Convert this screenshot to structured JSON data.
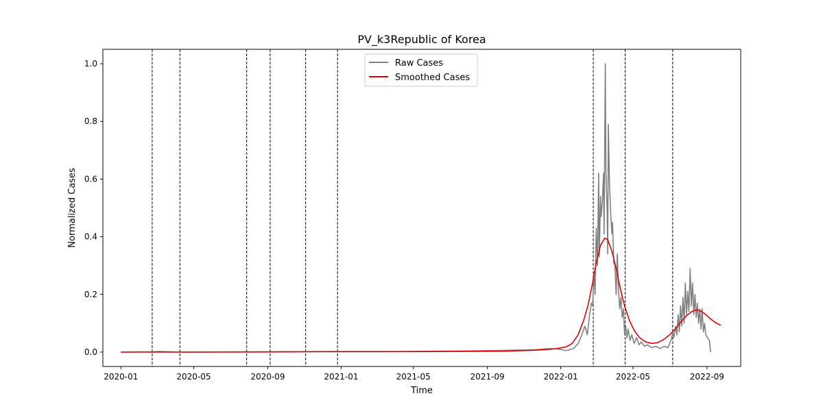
{
  "chart_data": {
    "type": "line",
    "title": "PV_k3Republic of Korea",
    "xlabel": "Time",
    "ylabel": "Normalized Cases",
    "x_range": [
      "2019-12-02",
      "2022-10-27"
    ],
    "ylim": [
      -0.05,
      1.05
    ],
    "grid": false,
    "legend_position": "top-center",
    "x_ticks": [
      "2020-01-01",
      "2020-05-01",
      "2020-09-01",
      "2021-01-01",
      "2021-05-01",
      "2021-09-01",
      "2022-01-01",
      "2022-05-01",
      "2022-09-01"
    ],
    "x_tick_labels": [
      "2020-01",
      "2020-05",
      "2020-09",
      "2021-01",
      "2021-05",
      "2021-09",
      "2022-01",
      "2022-05",
      "2022-09"
    ],
    "y_ticks": [
      0.0,
      0.2,
      0.4,
      0.6,
      0.8,
      1.0
    ],
    "y_tick_labels": [
      "0.0",
      "0.2",
      "0.4",
      "0.6",
      "0.8",
      "1.0"
    ],
    "vertical_markers": [
      "2020-02-22",
      "2020-04-08",
      "2020-07-28",
      "2020-09-05",
      "2020-11-03",
      "2020-12-26",
      "2022-02-24",
      "2022-04-18",
      "2022-07-06"
    ],
    "series": [
      {
        "name": "Raw Cases",
        "color": "#808080",
        "points": [
          [
            "2020-01-01",
            0.0
          ],
          [
            "2020-02-22",
            0.001
          ],
          [
            "2020-03-05",
            0.002
          ],
          [
            "2020-04-08",
            0.0
          ],
          [
            "2020-08-25",
            0.001
          ],
          [
            "2020-12-20",
            0.002
          ],
          [
            "2021-04-01",
            0.002
          ],
          [
            "2021-08-01",
            0.004
          ],
          [
            "2021-11-20",
            0.008
          ],
          [
            "2021-12-15",
            0.012
          ],
          [
            "2021-12-28",
            0.01
          ],
          [
            "2022-01-10",
            0.005
          ],
          [
            "2022-01-22",
            0.012
          ],
          [
            "2022-01-30",
            0.03
          ],
          [
            "2022-02-05",
            0.06
          ],
          [
            "2022-02-10",
            0.09
          ],
          [
            "2022-02-14",
            0.06
          ],
          [
            "2022-02-18",
            0.13
          ],
          [
            "2022-02-21",
            0.17
          ],
          [
            "2022-02-23",
            0.16
          ],
          [
            "2022-02-25",
            0.27
          ],
          [
            "2022-02-27",
            0.2
          ],
          [
            "2022-03-01",
            0.43
          ],
          [
            "2022-03-03",
            0.3
          ],
          [
            "2022-03-05",
            0.62
          ],
          [
            "2022-03-06",
            0.33
          ],
          [
            "2022-03-08",
            0.54
          ],
          [
            "2022-03-09",
            0.47
          ],
          [
            "2022-03-11",
            0.52
          ],
          [
            "2022-03-13",
            0.62
          ],
          [
            "2022-03-14",
            0.41
          ],
          [
            "2022-03-16",
            1.0
          ],
          [
            "2022-03-17",
            0.62
          ],
          [
            "2022-03-19",
            0.5
          ],
          [
            "2022-03-20",
            0.34
          ],
          [
            "2022-03-21",
            0.79
          ],
          [
            "2022-03-23",
            0.58
          ],
          [
            "2022-03-25",
            0.48
          ],
          [
            "2022-03-27",
            0.41
          ],
          [
            "2022-03-28",
            0.45
          ],
          [
            "2022-03-30",
            0.31
          ],
          [
            "2022-04-01",
            0.3
          ],
          [
            "2022-04-03",
            0.2
          ],
          [
            "2022-04-05",
            0.34
          ],
          [
            "2022-04-07",
            0.21
          ],
          [
            "2022-04-09",
            0.15
          ],
          [
            "2022-04-11",
            0.19
          ],
          [
            "2022-04-13",
            0.12
          ],
          [
            "2022-04-15",
            0.15
          ],
          [
            "2022-04-17",
            0.06
          ],
          [
            "2022-04-19",
            0.09
          ],
          [
            "2022-04-21",
            0.05
          ],
          [
            "2022-04-23",
            0.08
          ],
          [
            "2022-04-26",
            0.04
          ],
          [
            "2022-04-29",
            0.06
          ],
          [
            "2022-05-03",
            0.03
          ],
          [
            "2022-05-07",
            0.05
          ],
          [
            "2022-05-11",
            0.025
          ],
          [
            "2022-05-15",
            0.035
          ],
          [
            "2022-05-20",
            0.02
          ],
          [
            "2022-05-25",
            0.025
          ],
          [
            "2022-06-01",
            0.015
          ],
          [
            "2022-06-08",
            0.02
          ],
          [
            "2022-06-15",
            0.012
          ],
          [
            "2022-06-22",
            0.02
          ],
          [
            "2022-06-28",
            0.015
          ],
          [
            "2022-07-01",
            0.03
          ],
          [
            "2022-07-04",
            0.045
          ],
          [
            "2022-07-06",
            0.07
          ],
          [
            "2022-07-08",
            0.05
          ],
          [
            "2022-07-11",
            0.09
          ],
          [
            "2022-07-13",
            0.06
          ],
          [
            "2022-07-15",
            0.13
          ],
          [
            "2022-07-17",
            0.07
          ],
          [
            "2022-07-19",
            0.16
          ],
          [
            "2022-07-21",
            0.09
          ],
          [
            "2022-07-23",
            0.19
          ],
          [
            "2022-07-25",
            0.1
          ],
          [
            "2022-07-27",
            0.24
          ],
          [
            "2022-07-29",
            0.13
          ],
          [
            "2022-07-31",
            0.21
          ],
          [
            "2022-08-02",
            0.14
          ],
          [
            "2022-08-04",
            0.29
          ],
          [
            "2022-08-06",
            0.16
          ],
          [
            "2022-08-08",
            0.24
          ],
          [
            "2022-08-10",
            0.13
          ],
          [
            "2022-08-12",
            0.2
          ],
          [
            "2022-08-14",
            0.12
          ],
          [
            "2022-08-16",
            0.17
          ],
          [
            "2022-08-18",
            0.1
          ],
          [
            "2022-08-20",
            0.15
          ],
          [
            "2022-08-22",
            0.08
          ],
          [
            "2022-08-24",
            0.15
          ],
          [
            "2022-08-26",
            0.07
          ],
          [
            "2022-08-28",
            0.1
          ],
          [
            "2022-08-30",
            0.06
          ],
          [
            "2022-09-02",
            0.05
          ],
          [
            "2022-09-05",
            0.04
          ],
          [
            "2022-09-07",
            0.0
          ]
        ]
      },
      {
        "name": "Smoothed Cases",
        "color": "#e00000",
        "points": [
          [
            "2020-01-01",
            0.0
          ],
          [
            "2020-06-01",
            0.0
          ],
          [
            "2020-12-01",
            0.001
          ],
          [
            "2021-03-01",
            0.001
          ],
          [
            "2021-07-01",
            0.002
          ],
          [
            "2021-10-01",
            0.003
          ],
          [
            "2021-11-15",
            0.006
          ],
          [
            "2021-12-10",
            0.009
          ],
          [
            "2021-12-25",
            0.012
          ],
          [
            "2022-01-10",
            0.018
          ],
          [
            "2022-01-20",
            0.03
          ],
          [
            "2022-01-30",
            0.06
          ],
          [
            "2022-02-08",
            0.11
          ],
          [
            "2022-02-15",
            0.16
          ],
          [
            "2022-02-22",
            0.23
          ],
          [
            "2022-03-01",
            0.31
          ],
          [
            "2022-03-08",
            0.37
          ],
          [
            "2022-03-15",
            0.395
          ],
          [
            "2022-03-20",
            0.39
          ],
          [
            "2022-03-27",
            0.35
          ],
          [
            "2022-04-03",
            0.29
          ],
          [
            "2022-04-10",
            0.22
          ],
          [
            "2022-04-17",
            0.16
          ],
          [
            "2022-04-25",
            0.11
          ],
          [
            "2022-05-03",
            0.075
          ],
          [
            "2022-05-12",
            0.05
          ],
          [
            "2022-05-22",
            0.035
          ],
          [
            "2022-06-01",
            0.03
          ],
          [
            "2022-06-10",
            0.032
          ],
          [
            "2022-06-20",
            0.042
          ],
          [
            "2022-06-30",
            0.058
          ],
          [
            "2022-07-10",
            0.08
          ],
          [
            "2022-07-20",
            0.105
          ],
          [
            "2022-07-30",
            0.128
          ],
          [
            "2022-08-08",
            0.142
          ],
          [
            "2022-08-15",
            0.146
          ],
          [
            "2022-08-22",
            0.142
          ],
          [
            "2022-08-30",
            0.13
          ],
          [
            "2022-09-07",
            0.115
          ],
          [
            "2022-09-15",
            0.102
          ],
          [
            "2022-09-24",
            0.093
          ]
        ]
      }
    ]
  }
}
